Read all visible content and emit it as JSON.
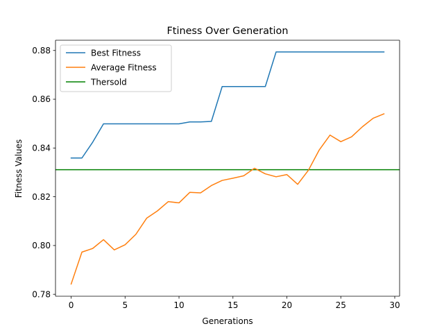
{
  "chart_data": {
    "type": "line",
    "title": "Ftiness Over Generation",
    "xlabel": "Generations",
    "ylabel": "Fitness Values",
    "xlim": [
      -1.45,
      30.45
    ],
    "ylim": [
      0.7792,
      0.8842
    ],
    "x_ticks": [
      0,
      5,
      10,
      15,
      20,
      25,
      30
    ],
    "y_ticks": [
      0.78,
      0.8,
      0.82,
      0.84,
      0.86,
      0.88
    ],
    "x_tick_labels": [
      "0",
      "5",
      "10",
      "15",
      "20",
      "25",
      "30"
    ],
    "y_tick_labels": [
      "0.78",
      "0.80",
      "0.82",
      "0.84",
      "0.86",
      "0.88"
    ],
    "grid": false,
    "legend_position": "top-left",
    "x": [
      0,
      1,
      2,
      3,
      4,
      5,
      6,
      7,
      8,
      9,
      10,
      11,
      12,
      13,
      14,
      15,
      16,
      17,
      18,
      19,
      20,
      21,
      22,
      23,
      24,
      25,
      26,
      27,
      28,
      29
    ],
    "series": [
      {
        "name": "Best Fitness",
        "color": "#1f77b4",
        "values": [
          0.8359,
          0.8359,
          0.8424,
          0.8499,
          0.8499,
          0.8499,
          0.8499,
          0.8499,
          0.8499,
          0.8499,
          0.8499,
          0.8507,
          0.8507,
          0.8509,
          0.8652,
          0.8652,
          0.8652,
          0.8652,
          0.8652,
          0.8794,
          0.8794,
          0.8794,
          0.8794,
          0.8794,
          0.8794,
          0.8794,
          0.8794,
          0.8794,
          0.8794,
          0.8794
        ]
      },
      {
        "name": "Average Fitness",
        "color": "#ff7f0e",
        "values": [
          0.7842,
          0.7973,
          0.7988,
          0.8024,
          0.7982,
          0.8003,
          0.8046,
          0.8112,
          0.8142,
          0.818,
          0.8175,
          0.8218,
          0.8216,
          0.8246,
          0.8267,
          0.8276,
          0.8286,
          0.8317,
          0.8294,
          0.8282,
          0.8291,
          0.8251,
          0.8309,
          0.8392,
          0.8453,
          0.8426,
          0.8446,
          0.8487,
          0.8522,
          0.854
        ]
      }
    ],
    "hlines": [
      {
        "name": "Thersold",
        "color": "#008000",
        "value": 0.8311
      }
    ]
  }
}
